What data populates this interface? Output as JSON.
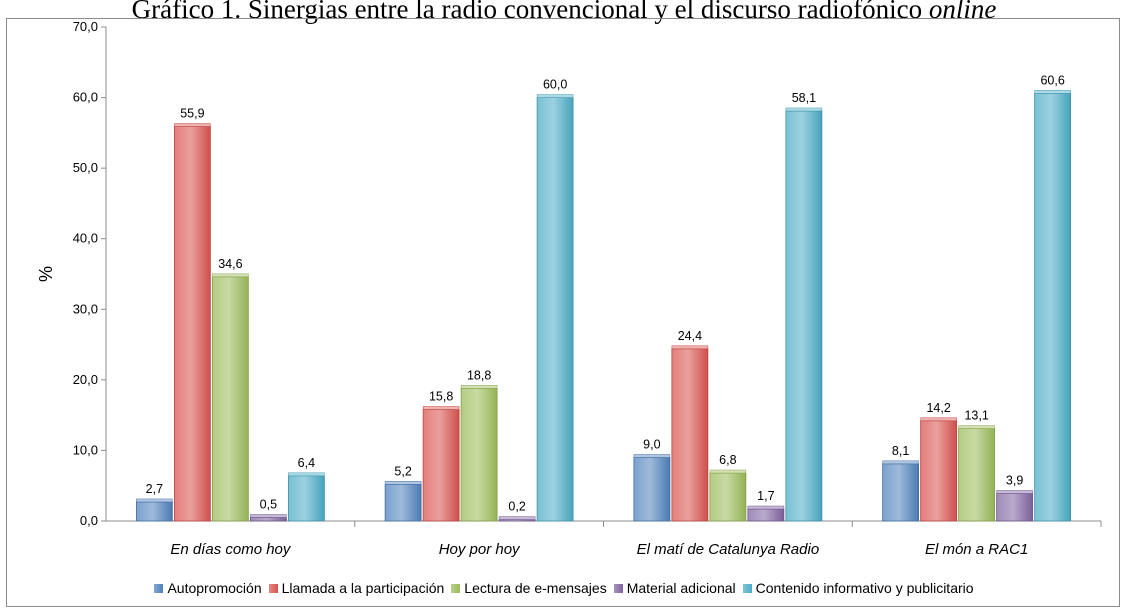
{
  "page_title": {
    "main": "Gráfico 1. Sinergias entre la radio convencional y el discurso radiofónico",
    "italic": "online"
  },
  "chart_data": {
    "type": "bar",
    "title": "Gráfico 1. Sinergias entre la radio convencional y el discurso radiofónico online",
    "xlabel": "",
    "ylabel": "%",
    "ylim": [
      0,
      70
    ],
    "yticks": [
      "0,0",
      "10,0",
      "20,0",
      "30,0",
      "40,0",
      "50,0",
      "60,0",
      "70,0"
    ],
    "grid": false,
    "legend_position": "bottom",
    "categories": [
      "En días como hoy",
      "Hoy por hoy",
      "El matí de Catalunya Radio",
      "El món a RAC1"
    ],
    "series": [
      {
        "name": "Autopromoción",
        "color": "#4f81bd",
        "values": [
          2.7,
          5.2,
          9.0,
          8.1
        ],
        "labels": [
          "2,7",
          "5,2",
          "9,0",
          "8,1"
        ]
      },
      {
        "name": "Llamada a la participación",
        "color": "#d9534f",
        "values": [
          55.9,
          15.8,
          24.4,
          14.2
        ],
        "labels": [
          "55,9",
          "15,8",
          "24,4",
          "14,2"
        ]
      },
      {
        "name": "Lectura de e-mensajes",
        "color": "#9bbb59",
        "values": [
          34.6,
          18.8,
          6.8,
          13.1
        ],
        "labels": [
          "34,6",
          "18,8",
          "6,8",
          "13,1"
        ]
      },
      {
        "name": "Material adicional",
        "color": "#8064a2",
        "values": [
          0.5,
          0.2,
          1.7,
          3.9
        ],
        "labels": [
          "0,5",
          "0,2",
          "1,7",
          "3,9"
        ]
      },
      {
        "name": "Contenido informativo y publicitario",
        "color": "#4bacc6",
        "values": [
          6.4,
          60.0,
          58.1,
          60.6
        ],
        "labels": [
          "6,4",
          "60,0",
          "58,1",
          "60,6"
        ]
      }
    ]
  }
}
